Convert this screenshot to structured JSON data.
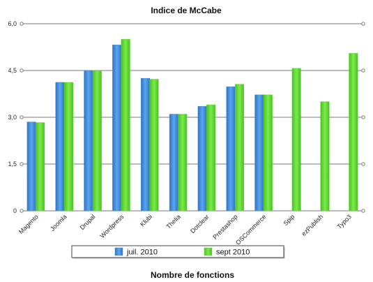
{
  "chart_data": {
    "type": "bar",
    "title": "Indice de McCabe",
    "xlabel": "Nombre de fonctions",
    "ylabel": "",
    "ylim": [
      0,
      6
    ],
    "yticks": [
      "0",
      "1,5",
      "3,0",
      "4,5",
      "6,0"
    ],
    "ytick_values": [
      0,
      1.5,
      3,
      4.5,
      6
    ],
    "grid": true,
    "legend_position": "bottom",
    "categories": [
      "Magento",
      "Joomla",
      "Drupal",
      "Wordpress",
      "Klubi",
      "Thelia",
      "Dotclear",
      "Prestashop",
      "OSCommerce",
      "Spip",
      "ezPublish",
      "Typo3"
    ],
    "series": [
      {
        "name": "juil. 2010",
        "color": "#3e8ed8",
        "values": [
          2.85,
          4.12,
          4.5,
          5.32,
          4.25,
          3.1,
          3.35,
          3.98,
          3.72,
          null,
          null,
          null
        ]
      },
      {
        "name": "sept 2010",
        "color": "#5ed834",
        "values": [
          2.83,
          4.12,
          4.5,
          5.5,
          4.22,
          3.1,
          3.4,
          4.06,
          3.72,
          4.57,
          3.5,
          5.05
        ]
      }
    ]
  }
}
